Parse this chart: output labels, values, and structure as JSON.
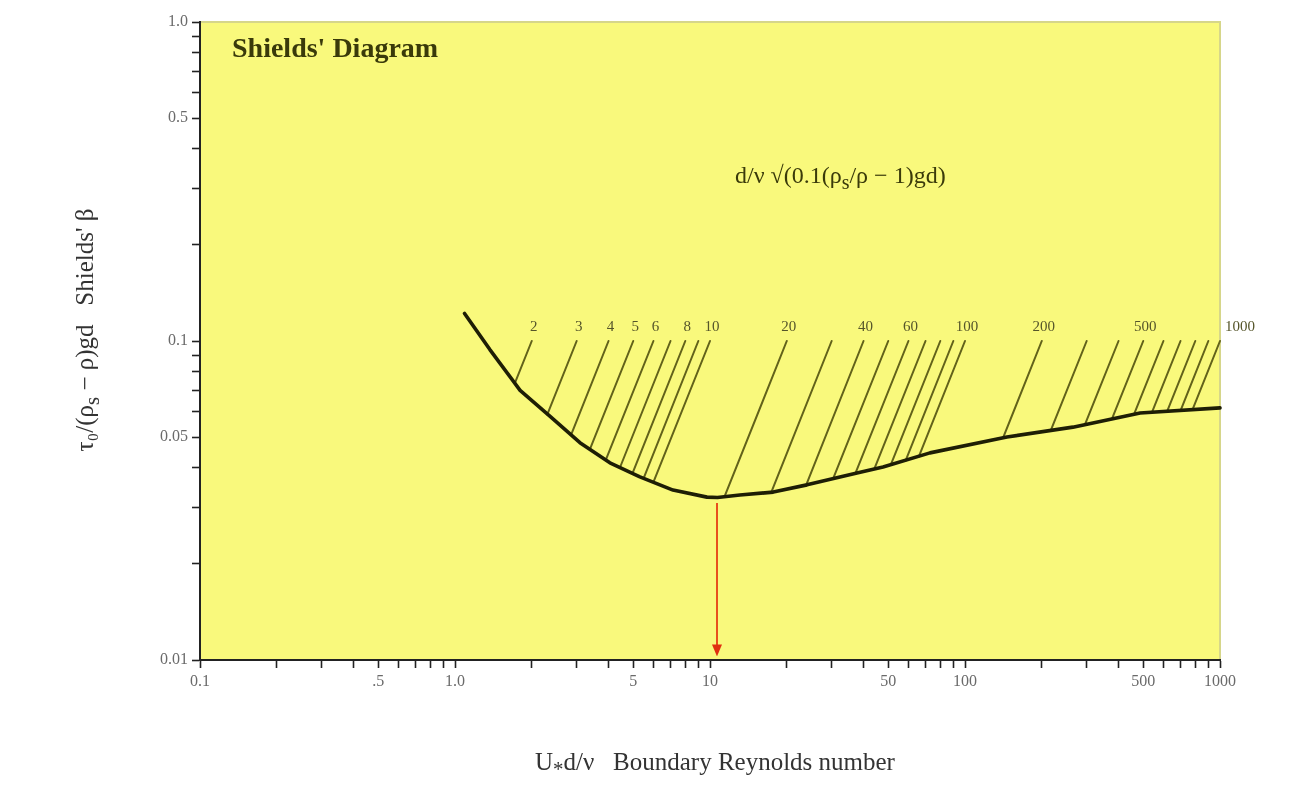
{
  "chart_data": {
    "type": "line",
    "title": "Shields' Diagram",
    "xlabel": "U$_{*}$d/ν   Boundary Reynolds number",
    "ylabel": "τ₀/(ρ$_{s}$ − ρ)gd   Shields' β",
    "annotations": [
      "d/ν √(0.1(ρ$_{s}$/ρ − 1)gd)"
    ],
    "log": "xy",
    "marker": "none",
    "xlim": [
      0.1,
      1000
    ],
    "ylim": [
      0.01,
      1
    ],
    "xticks": [
      0.1,
      {
        "value": 0.2,
        "label": null
      },
      {
        "value": 0.3,
        "label": null
      },
      {
        "value": 0.4,
        "label": null
      },
      {
        "value": 0.5,
        "label": ".5"
      },
      {
        "value": 0.6,
        "label": null
      },
      {
        "value": 0.7,
        "label": null
      },
      {
        "value": 0.8,
        "label": null
      },
      {
        "value": 0.9,
        "label": null
      },
      {
        "value": 1,
        "label": "1.0"
      },
      {
        "value": 2,
        "label": null
      },
      {
        "value": 3,
        "label": null
      },
      {
        "value": 4,
        "label": null
      },
      5,
      {
        "value": 6,
        "label": null
      },
      {
        "value": 7,
        "label": null
      },
      {
        "value": 8,
        "label": null
      },
      {
        "value": 9,
        "label": null
      },
      10,
      {
        "value": 20,
        "label": null
      },
      {
        "value": 30,
        "label": null
      },
      {
        "value": 40,
        "label": null
      },
      50,
      {
        "value": 60,
        "label": null
      },
      {
        "value": 70,
        "label": null
      },
      {
        "value": 80,
        "label": null
      },
      {
        "value": 90,
        "label": null
      },
      100,
      {
        "value": 200,
        "label": null
      },
      {
        "value": 300,
        "label": null
      },
      {
        "value": 400,
        "label": null
      },
      500,
      {
        "value": 600,
        "label": null
      },
      {
        "value": 700,
        "label": null
      },
      {
        "value": 800,
        "label": null
      },
      {
        "value": 900,
        "label": null
      },
      1000
    ],
    "yticks": [
      0.01,
      {
        "value": 0.02,
        "label": null
      },
      {
        "value": 0.03,
        "label": null
      },
      {
        "value": 0.04,
        "label": null
      },
      0.05,
      {
        "value": 0.06,
        "label": null
      },
      {
        "value": 0.07,
        "label": null
      },
      {
        "value": 0.08,
        "label": null
      },
      {
        "value": 0.09,
        "label": null
      },
      0.1,
      {
        "value": 0.2,
        "label": null
      },
      {
        "value": 0.3,
        "label": null
      },
      {
        "value": 0.4,
        "label": null
      },
      0.5,
      {
        "value": 0.6,
        "label": null
      },
      {
        "value": 0.7,
        "label": null
      },
      {
        "value": 0.8,
        "label": null
      },
      {
        "value": 0.9,
        "label": null
      },
      {
        "value": 1,
        "label": "1.0"
      }
    ],
    "series": [
      {
        "color": "#1e1e05",
        "x": [
          1.09,
          1.37,
          1.8,
          2.36,
          3.09,
          4.05,
          5.31,
          7.16,
          9.73,
          10.7,
          13.1,
          17.7,
          24,
          37.7,
          47.7,
          72.9,
          146,
          265,
          486,
          1000
        ],
        "values": [
          0.122,
          0.094,
          0.07,
          0.058,
          0.048,
          0.0415,
          0.0375,
          0.0341,
          0.0324,
          0.0323,
          0.0329,
          0.0336,
          0.0354,
          0.0386,
          0.0403,
          0.0446,
          0.05,
          0.0537,
          0.0595,
          0.0617
        ]
      },
      {
        "name": "2",
        "color": "#62621a",
        "x": [
          2,
          1.72
        ],
        "values": [
          0.1,
          0.074
        ]
      },
      {
        "name": "3",
        "color": "#62621a",
        "x": [
          3,
          2.3
        ],
        "values": [
          0.1,
          0.0588
        ]
      },
      {
        "name": "4",
        "color": "#62621a",
        "x": [
          4,
          2.85
        ],
        "values": [
          0.1,
          0.0507
        ]
      },
      {
        "name": "5",
        "color": "#62621a",
        "x": [
          5,
          3.38
        ],
        "values": [
          0.1,
          0.0457
        ]
      },
      {
        "name": "6",
        "color": "#62621a",
        "x": [
          6,
          3.9
        ],
        "values": [
          0.1,
          0.0423
        ]
      },
      {
        "color": "#62621a",
        "x": [
          7,
          4.44
        ],
        "values": [
          0.1,
          0.0402
        ]
      },
      {
        "name": "8",
        "color": "#62621a",
        "x": [
          8,
          4.97
        ],
        "values": [
          0.1,
          0.0385
        ]
      },
      {
        "color": "#62621a",
        "x": [
          9,
          5.49
        ],
        "values": [
          0.1,
          0.0371
        ]
      },
      {
        "name": "10",
        "color": "#62621a",
        "x": [
          10,
          6
        ],
        "values": [
          0.1,
          0.0361
        ]
      },
      {
        "name": "20",
        "color": "#62621a",
        "x": [
          20,
          11.4
        ],
        "values": [
          0.1,
          0.0325
        ]
      },
      {
        "color": "#62621a",
        "x": [
          30,
          17.4
        ],
        "values": [
          0.1,
          0.0336
        ]
      },
      {
        "name": "40",
        "color": "#62621a",
        "x": [
          40,
          23.8
        ],
        "values": [
          0.1,
          0.0353
        ]
      },
      {
        "color": "#62621a",
        "x": [
          50,
          30.4
        ],
        "values": [
          0.1,
          0.037
        ]
      },
      {
        "name": "60",
        "color": "#62621a",
        "x": [
          60,
          37.2
        ],
        "values": [
          0.1,
          0.0385
        ]
      },
      {
        "color": "#62621a",
        "x": [
          70,
          44.1
        ],
        "values": [
          0.1,
          0.0397
        ]
      },
      {
        "color": "#62621a",
        "x": [
          80,
          51.2
        ],
        "values": [
          0.1,
          0.041
        ]
      },
      {
        "color": "#62621a",
        "x": [
          90,
          58.5
        ],
        "values": [
          0.1,
          0.0422
        ]
      },
      {
        "name": "100",
        "color": "#62621a",
        "x": [
          100,
          65.9
        ],
        "values": [
          0.1,
          0.0434
        ]
      },
      {
        "name": "200",
        "color": "#62621a",
        "x": [
          200,
          141
        ],
        "values": [
          0.1,
          0.0497
        ]
      },
      {
        "color": "#62621a",
        "x": [
          300,
          217
        ],
        "values": [
          0.1,
          0.0525
        ]
      },
      {
        "color": "#62621a",
        "x": [
          400,
          295
        ],
        "values": [
          0.1,
          0.0546
        ]
      },
      {
        "name": "500",
        "color": "#62621a",
        "x": [
          500,
          377
        ],
        "values": [
          0.1,
          0.057
        ]
      },
      {
        "color": "#62621a",
        "x": [
          600,
          460
        ],
        "values": [
          0.1,
          0.0589
        ]
      },
      {
        "color": "#62621a",
        "x": [
          700,
          541
        ],
        "values": [
          0.1,
          0.0597
        ]
      },
      {
        "color": "#62621a",
        "x": [
          800,
          621
        ],
        "values": [
          0.1,
          0.0603
        ]
      },
      {
        "color": "#62621a",
        "x": [
          900,
          701
        ],
        "values": [
          0.1,
          0.0606
        ]
      },
      {
        "name": "1000",
        "color": "#62621a",
        "x": [
          1000,
          781
        ],
        "values": [
          0.1,
          0.061
        ]
      }
    ]
  }
}
